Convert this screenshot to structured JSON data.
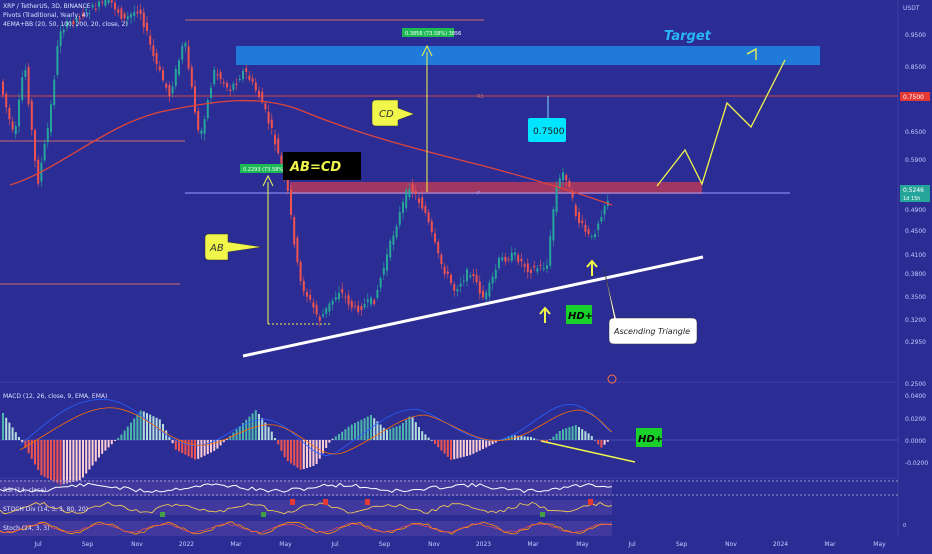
{
  "header": {
    "symbol_line": "XRP / TetherUS, 3D, BINANCE",
    "pivots_line": "Pivots (Traditional, Yearly, 4)",
    "ema_line": "4EMA+BB (20, 50, 100, 200, 20, close, 2)",
    "currency": "USDT"
  },
  "indicators": {
    "macd": "MACD (12, 26, close, 9, EMA, EMA)",
    "rsi": "RSI (14, close)",
    "stoch_div": "STOCH Div (14, 3, 3, 80, 20)",
    "stoch": "Stoch (14, 3, 3)"
  },
  "colors": {
    "background": "#2b2d95",
    "bull": "#26a69a",
    "bear": "#ef5350",
    "ema": "#e0453a",
    "annotation": "#f0f64a",
    "target_zone": "#1e88e5",
    "resistance_zone": "#b5385a",
    "macd_line": "#2962ff",
    "signal_line": "#ff6d00"
  },
  "chart_data": {
    "type": "candlestick",
    "price_scale": "log",
    "price_axis": [
      "0.9500",
      "0.8500",
      "0.6500",
      "0.5900",
      "0.4900",
      "0.4500",
      "0.4100",
      "0.3800",
      "0.3500",
      "0.3200",
      "0.2950",
      "0.2500"
    ],
    "macd_axis": [
      "0.0400",
      "0.0200",
      "0.0000",
      "-0.0200"
    ],
    "time_axis": [
      "Jul",
      "Sep",
      "Nov",
      "2022",
      "Mar",
      "May",
      "Jul",
      "Sep",
      "Nov",
      "2023",
      "Mar",
      "May",
      "Jul",
      "Sep",
      "Nov",
      "2024",
      "Mar",
      "May"
    ],
    "price_badges": {
      "last_price": "0.5246",
      "countdown": "1d 15h",
      "pivot_level": "0.7500"
    },
    "annotations": {
      "target": "Target",
      "cd": "CD",
      "ab": "AB",
      "ab_equals_cd": "AB=CD",
      "level_box": "0.7500",
      "hd_price": "HD+",
      "hd_macd": "HD+",
      "triangle": "Ascending Triangle",
      "measure_ab": "0.2293 (73.58%) 2293",
      "measure_cd": "0.3856 (73.58%) 3856",
      "pivot_label": "R3",
      "pivot_small": "P"
    }
  }
}
